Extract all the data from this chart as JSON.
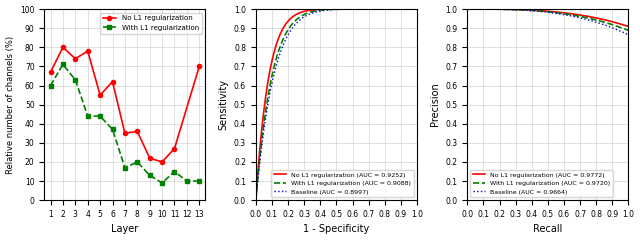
{
  "subplot_a": {
    "xlabel": "Layer",
    "ylabel": "Relative number of channels (%)",
    "xticks": [
      1,
      2,
      3,
      4,
      5,
      6,
      7,
      8,
      9,
      10,
      11,
      12,
      13
    ],
    "yticks": [
      0,
      10,
      20,
      30,
      40,
      50,
      60,
      70,
      80,
      90,
      100
    ],
    "no_l1_x": [
      1,
      2,
      3,
      4,
      5,
      6,
      7,
      8,
      9,
      10,
      11,
      13
    ],
    "no_l1_y": [
      67,
      80,
      74,
      78,
      55,
      62,
      35,
      36,
      22,
      20,
      27,
      70
    ],
    "with_l1_x": [
      1,
      2,
      3,
      4,
      5,
      6,
      7,
      8,
      9,
      10,
      11,
      12,
      13
    ],
    "with_l1_y": [
      60,
      71,
      63,
      44,
      44,
      37,
      17,
      20,
      13,
      9,
      15,
      10,
      10
    ]
  },
  "subplot_b": {
    "xlabel": "1 - Specificity",
    "ylabel": "Sensitivity",
    "roc_aucs": [
      0.9252,
      0.9088,
      0.8997
    ],
    "legend": [
      "No L1 regularization (AUC = 0.9252)",
      "With L1 regularization (AUC = 0.9088)",
      "Baseline (AUC = 0.8997)"
    ]
  },
  "subplot_c": {
    "xlabel": "Recall",
    "ylabel": "Precision",
    "pr_aucs": [
      0.9772,
      0.972,
      0.9664
    ],
    "legend": [
      "No L1 regularization (AUC = 0.9772)",
      "With L1 regularization (AUC = 0.9720)",
      "Baseline (AUC = 0.9664)"
    ]
  },
  "colors": {
    "no_l1": "#ff0000",
    "with_l1": "#008000",
    "baseline": "#0000cc"
  }
}
